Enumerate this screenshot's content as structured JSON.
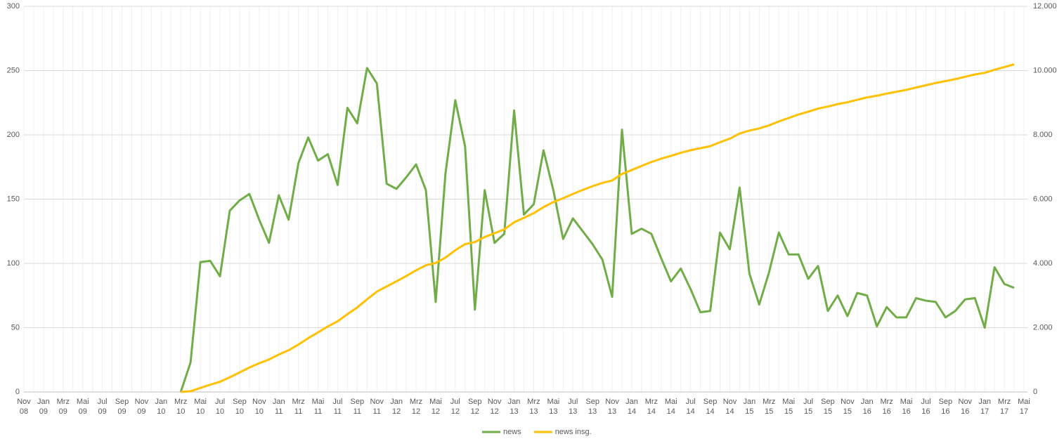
{
  "chart_data": {
    "type": "line",
    "categories": [
      "Nov 08",
      null,
      "Jan 09",
      null,
      "Mrz 09",
      null,
      "Mai 09",
      null,
      "Jul 09",
      null,
      "Sep 09",
      null,
      "Nov 09",
      null,
      "Jan 10",
      null,
      "Mrz 10",
      null,
      "Mai 10",
      null,
      "Jul 10",
      null,
      "Sep 10",
      null,
      "Nov 10",
      null,
      "Jan 11",
      null,
      "Mrz 11",
      null,
      "Mai 11",
      null,
      "Jul 11",
      null,
      "Sep 11",
      null,
      "Nov 11",
      null,
      "Jan 12",
      null,
      "Mrz 12",
      null,
      "Mai 12",
      null,
      "Jul 12",
      null,
      "Sep 12",
      null,
      "Nov 12",
      null,
      "Jan 13",
      null,
      "Mrz 13",
      null,
      "Mai 13",
      null,
      "Jul 13",
      null,
      "Sep 13",
      null,
      "Nov 13",
      null,
      "Jan 14",
      null,
      "Mrz 14",
      null,
      "Mai 14",
      null,
      "Jul 14",
      null,
      "Sep 14",
      null,
      "Nov 14",
      null,
      "Jan 15",
      null,
      "Mrz 15",
      null,
      "Mai 15",
      null,
      "Jul 15",
      null,
      "Sep 15",
      null,
      "Nov 15",
      null,
      "Jan 16",
      null,
      "Mrz 16",
      null,
      "Mai 16",
      null,
      "Jul 16",
      null,
      "Sep 16",
      null,
      "Nov 16",
      null,
      "Jan 17",
      null,
      "Mrz 17",
      null,
      "Mai 17"
    ],
    "series": [
      {
        "name": "news",
        "color": "#70ad47",
        "values": [
          null,
          null,
          null,
          null,
          null,
          null,
          null,
          null,
          null,
          null,
          null,
          null,
          null,
          null,
          null,
          null,
          0,
          23,
          101,
          102,
          90,
          141,
          149,
          154,
          134,
          116,
          153,
          134,
          178,
          198,
          180,
          185,
          161,
          221,
          209,
          252,
          240,
          162,
          158,
          167,
          177,
          157,
          70,
          170,
          227,
          191,
          64,
          157,
          116,
          123,
          219,
          138,
          146,
          188,
          157,
          119,
          135,
          125,
          115,
          103,
          74,
          204,
          123,
          127,
          123,
          104,
          86,
          96,
          80,
          62,
          63,
          124,
          111,
          159,
          92,
          68,
          93,
          124,
          107,
          107,
          88,
          98,
          63,
          75,
          59,
          77,
          75,
          51,
          66,
          58,
          58,
          73,
          71,
          70,
          58,
          63,
          72,
          73,
          50,
          97,
          84,
          81,
          null
        ]
      },
      {
        "name": "news insg.",
        "color": "#ffc000",
        "axis": "y2",
        "values": [
          null,
          null,
          null,
          null,
          null,
          null,
          null,
          null,
          null,
          null,
          null,
          null,
          null,
          null,
          null,
          null,
          0,
          23,
          124,
          226,
          316,
          457,
          606,
          760,
          894,
          1010,
          1163,
          1297,
          1475,
          1673,
          1853,
          2038,
          2199,
          2420,
          2629,
          2881,
          3121,
          3283,
          3441,
          3608,
          3785,
          3942,
          4012,
          4182,
          4409,
          4600,
          4664,
          4821,
          4937,
          5060,
          5279,
          5417,
          5563,
          5751,
          5908,
          6027,
          6162,
          6287,
          6402,
          6505,
          6579,
          6783,
          6906,
          7033,
          7156,
          7260,
          7346,
          7442,
          7522,
          7584,
          7647,
          7771,
          7882,
          8041,
          8133,
          8201,
          8294,
          8418,
          8525,
          8632,
          8720,
          8818,
          8881,
          8956,
          9015,
          9092,
          9167,
          9218,
          9284,
          9342,
          9400,
          9473,
          9544,
          9614,
          9672,
          9735,
          9807,
          9880,
          9930,
          10027,
          10111,
          10192,
          null
        ]
      }
    ],
    "ylim": [
      0,
      300
    ],
    "yticks": [
      0,
      50,
      100,
      150,
      200,
      250,
      300
    ],
    "y2lim": [
      0,
      12000
    ],
    "y2ticks": [
      0,
      {
        "value": 2000,
        "label": "2.000"
      },
      {
        "value": 4000,
        "label": "4.000"
      },
      {
        "value": 6000,
        "label": "6.000"
      },
      {
        "value": 8000,
        "label": "8.000"
      },
      {
        "value": 10000,
        "label": "10.000"
      },
      {
        "value": 12000,
        "label": "12.000"
      }
    ],
    "grid": true,
    "legend": "bottom"
  }
}
